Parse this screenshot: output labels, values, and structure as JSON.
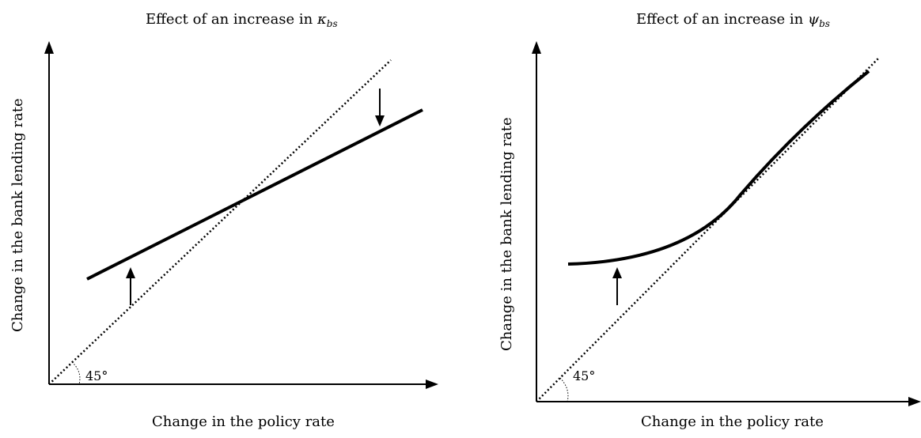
{
  "panels": [
    {
      "title_prefix": "Effect of an increase in ",
      "title_symbol": "κ",
      "title_subscript": "bs",
      "xlabel": "Change in the policy rate",
      "ylabel": "Change in the bank lending rate",
      "angle_label": "45°"
    },
    {
      "title_prefix": "Effect of an increase in ",
      "title_symbol": "ψ",
      "title_subscript": "bs",
      "xlabel": "Change in the policy rate",
      "ylabel": "Change in the bank lending rate",
      "angle_label": "45°"
    }
  ]
}
